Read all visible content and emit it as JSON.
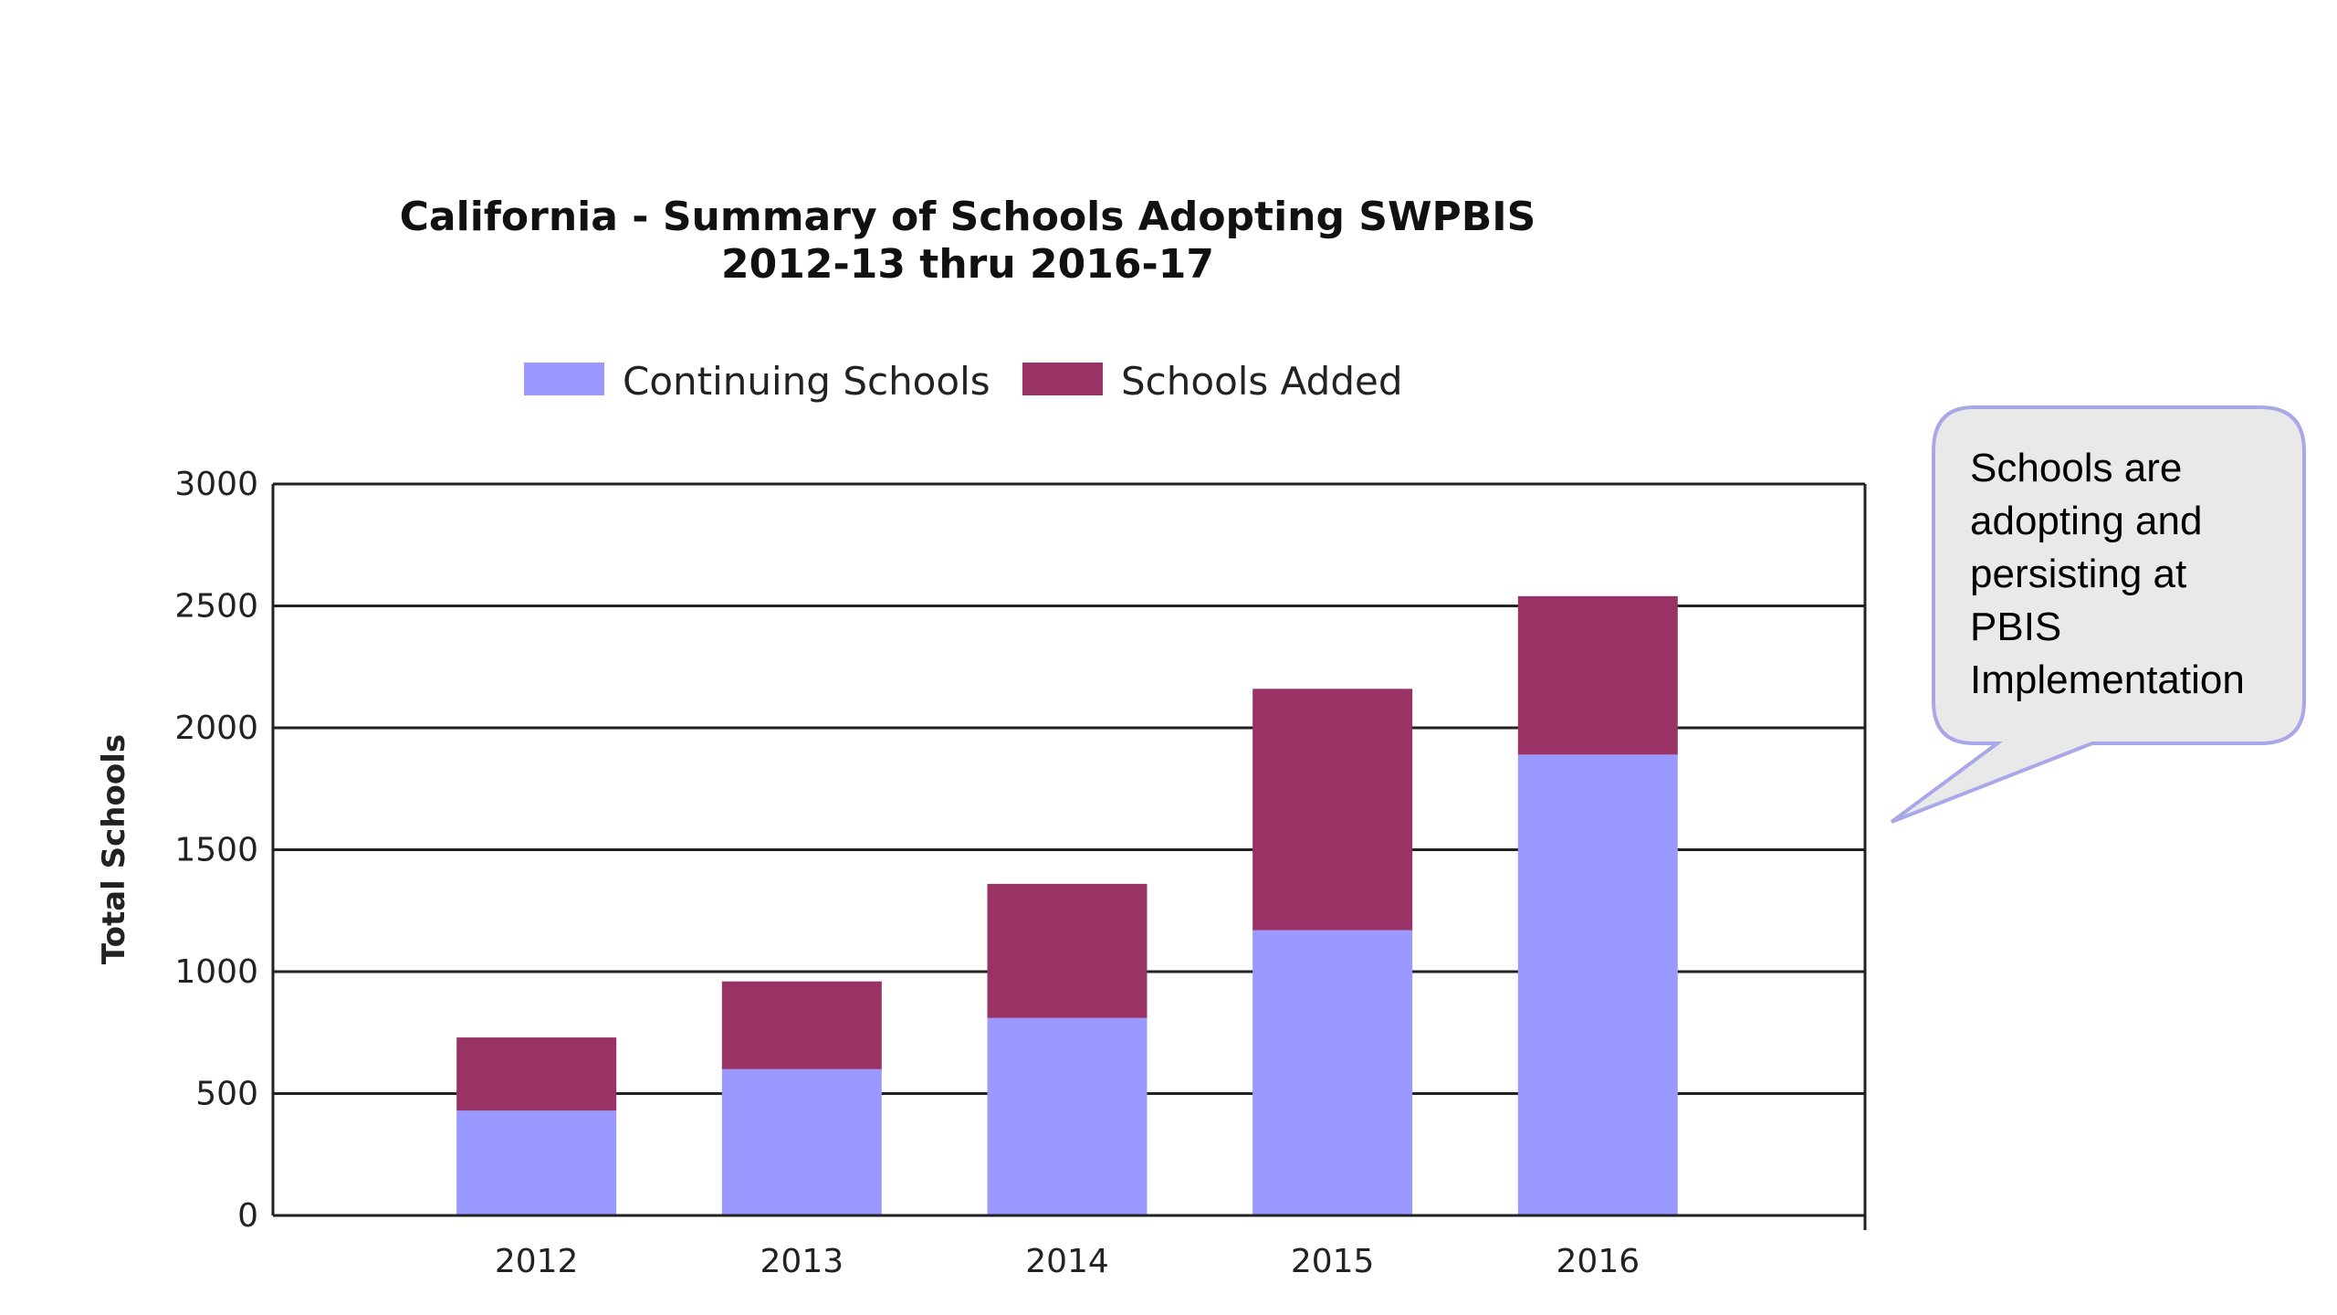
{
  "chart_data": {
    "type": "bar",
    "stacked": true,
    "title": "California - Summary of Schools Adopting SWPBIS",
    "subtitle": "2012-13 thru 2016-17",
    "xlabel": "",
    "ylabel": "Total Schools",
    "categories": [
      "2012",
      "2013",
      "2014",
      "2015",
      "2016"
    ],
    "series": [
      {
        "name": "Continuing Schools",
        "color": "#9999ff",
        "values": [
          430,
          600,
          810,
          1170,
          1890
        ]
      },
      {
        "name": "Schools Added",
        "color": "#993366",
        "values": [
          300,
          360,
          550,
          990,
          650
        ]
      }
    ],
    "ylim": [
      0,
      3000
    ],
    "yticks": [
      0,
      500,
      1000,
      1500,
      2000,
      2500,
      3000
    ],
    "grid": true,
    "legend": "top"
  },
  "callout": {
    "lines": [
      "Schools are",
      "adopting and",
      "persisting at",
      "PBIS",
      "Implementation"
    ]
  }
}
